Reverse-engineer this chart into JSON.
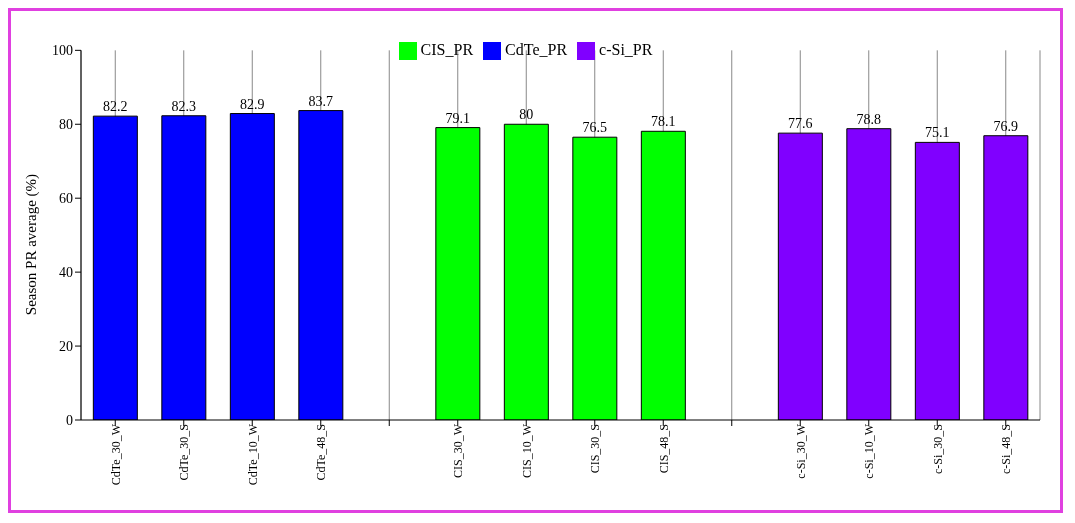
{
  "chart_data": {
    "type": "bar",
    "ylabel": "Season PR average (%)",
    "categories": [
      "CdTe_30_W",
      "CdTe_30_S",
      "CdTe_10_W",
      "CdTe_48_S",
      null,
      "CIS_30_W",
      "CIS_10_W",
      "CIS_30_S",
      "CIS_48_S",
      null,
      "c-Si_30_W",
      "c-Si_10_W",
      "c-Si_30_S",
      "c-Si_48_S"
    ],
    "series": [
      {
        "name": "CdTe_PR",
        "color": "#0000ff",
        "values": [
          82.2,
          82.3,
          82.9,
          83.7,
          null,
          null,
          null,
          null,
          null,
          null,
          null,
          null,
          null,
          null
        ]
      },
      {
        "name": "CIS_PR",
        "color": "#00ff00",
        "values": [
          null,
          null,
          null,
          null,
          null,
          79.1,
          80,
          76.5,
          78.1,
          null,
          null,
          null,
          null,
          null
        ]
      },
      {
        "name": "c-Si_PR",
        "color": "#8000ff",
        "values": [
          null,
          null,
          null,
          null,
          null,
          null,
          null,
          null,
          null,
          null,
          77.6,
          78.8,
          75.1,
          76.9
        ]
      }
    ],
    "ylim": [
      0,
      100
    ],
    "yticks": [
      0,
      20,
      40,
      60,
      80,
      100
    ],
    "grid": "x",
    "legend": "top",
    "data_labels": true
  }
}
